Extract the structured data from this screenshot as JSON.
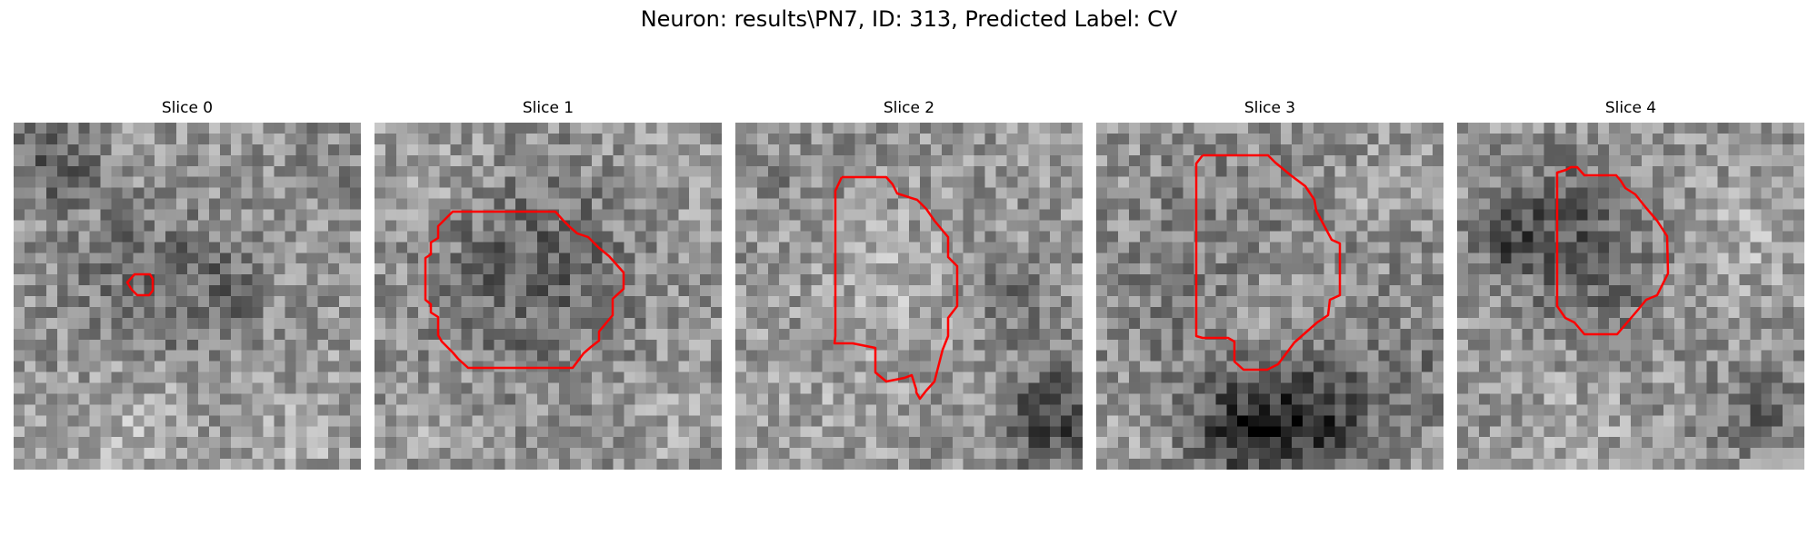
{
  "figure": {
    "title": "Neuron: results\\PN7, ID: 313, Predicted Label: CV"
  },
  "slices": [
    {
      "title": "Slice 0"
    },
    {
      "title": "Slice 1"
    },
    {
      "title": "Slice 2"
    },
    {
      "title": "Slice 3"
    },
    {
      "title": "Slice 4"
    }
  ],
  "colors": {
    "contour": "#ff0000",
    "colormap": "grayscale"
  }
}
